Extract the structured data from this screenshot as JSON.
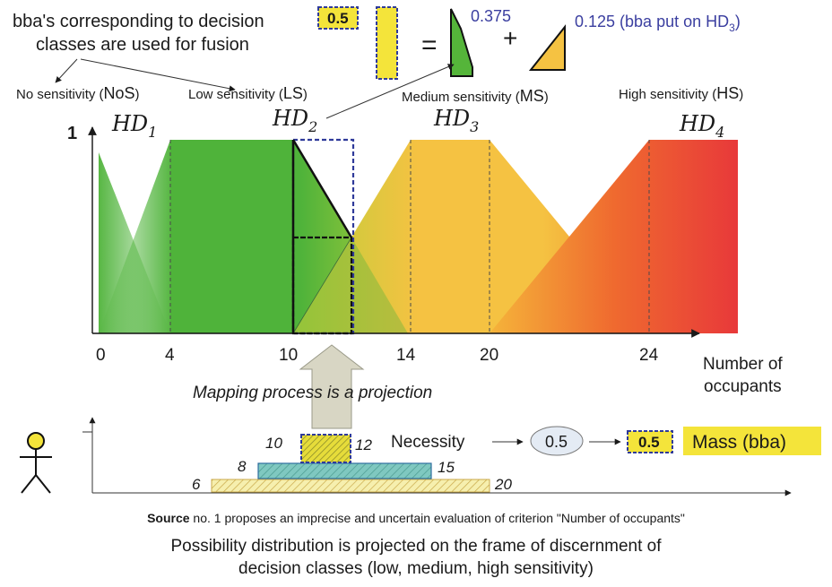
{
  "header": {
    "note_line1": "bba's corresponding to decision",
    "note_line2": "classes are used for fusion",
    "value_box": "0.5",
    "equals": "=",
    "plus": "+",
    "ms_value": "0.375",
    "hs_value_prefix": "0.125 (bba put on HD",
    "hs_value_sub": "3",
    "hs_value_suffix": ")"
  },
  "classes": {
    "nos": {
      "text": "No sensitivity (",
      "abbr": "NoS",
      "close": ")"
    },
    "ls": {
      "text": "Low sensitivity (",
      "abbr": "LS",
      "close": ")"
    },
    "ms": {
      "text": "Medium sensitivity (",
      "abbr": "MS",
      "close": ")"
    },
    "hs": {
      "text": "High sensitivity (",
      "abbr": "HS",
      "close": ")"
    }
  },
  "hd_labels": [
    {
      "base": "HD",
      "sub": "1"
    },
    {
      "base": "HD",
      "sub": "2"
    },
    {
      "base": "HD",
      "sub": "3"
    },
    {
      "base": "HD",
      "sub": "4"
    }
  ],
  "axis": {
    "y_top": "1",
    "ticks": [
      "0",
      "4",
      "10",
      "14",
      "20",
      "24"
    ],
    "xlabel_line1": "Number of",
    "xlabel_line2": "occupants"
  },
  "mapping_label": "Mapping process is a projection",
  "source_panel": {
    "inner_left": "10",
    "inner_right": "12",
    "mid_left": "8",
    "mid_right": "15",
    "outer_left": "6",
    "outer_right": "20",
    "necessity_label": "Necessity",
    "necessity_value": "0.5",
    "result_value": "0.5",
    "mass_label": "Mass (bba)"
  },
  "captions": {
    "source_bold": "Source",
    "source_rest": " no. 1 proposes an imprecise and uncertain evaluation of criterion \"Number of occupants\"",
    "main_line1": "Possibility distribution is projected on the frame of discernment of",
    "main_line2": "decision classes (low, medium, high sensitivity)"
  },
  "colors": {
    "green": "#4fb33a",
    "yellow": "#f5c242",
    "red": "#e8393a",
    "highlight": "#f4e43a",
    "dash_blue": "#2f3a9a",
    "text_blue": "#3b3fa0"
  }
}
